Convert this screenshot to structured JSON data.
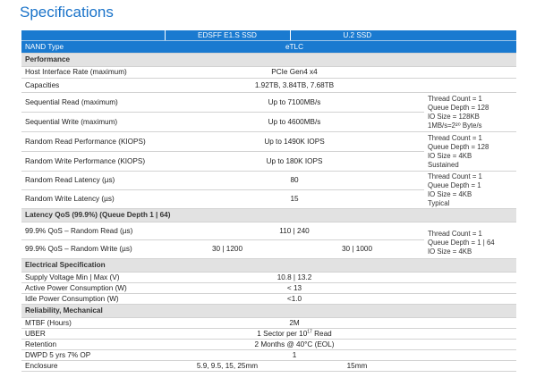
{
  "title": "Specifications",
  "header": {
    "col1": "EDSFF E1.S SSD",
    "col2": "U.2 SSD"
  },
  "nand": {
    "label": "NAND Type",
    "value": "eTLC"
  },
  "sections": {
    "performance": "Performance",
    "latency_qos": "Latency QoS (99.9%) (Queue Depth 1 | 64)",
    "electrical": "Electrical Specification",
    "reliability": "Reliability, Mechanical"
  },
  "rows": {
    "host_interface": {
      "label": "Host Interface Rate (maximum)",
      "value": "PCIe Gen4 x4"
    },
    "capacities": {
      "label": "Capacities",
      "value": "1.92TB, 3.84TB, 7.68TB"
    },
    "seq_read": {
      "label": "Sequential Read (maximum)",
      "value": "Up to 7100MB/s"
    },
    "seq_write": {
      "label": "Sequential Write (maximum)",
      "value": "Up to 4600MB/s"
    },
    "rand_read": {
      "label": "Random Read Performance (KIOPS)",
      "value": "Up to 1490K IOPS"
    },
    "rand_write": {
      "label": "Random Write Performance (KIOPS)",
      "value": "Up to 180K IOPS"
    },
    "rand_read_lat": {
      "label": "Random Read Latency (µs)",
      "value": "80"
    },
    "rand_write_lat": {
      "label": "Random Write Latency (µs)",
      "value": "15"
    },
    "qos_read": {
      "label": "99.9% QoS – Random Read (µs)",
      "value": "110 | 240"
    },
    "qos_write": {
      "label": "99.9% QoS – Random Write (µs)",
      "value_col1": "30 | 1200",
      "value_col2": "30 | 1000"
    },
    "voltage": {
      "label": "Supply Voltage Min | Max (V)",
      "value": "10.8 | 13.2"
    },
    "active_power": {
      "label": "Active Power Consumption (W)",
      "value": "< 13"
    },
    "idle_power": {
      "label": "Idle Power Consumption (W)",
      "value": "<1.0"
    },
    "mtbf": {
      "label": "MTBF (Hours)",
      "value": "2M"
    },
    "uber": {
      "label": "UBER",
      "value_prefix": "1 Sector per 10",
      "value_exp": "17",
      "value_suffix": " Read"
    },
    "retention": {
      "label": "Retention",
      "value": "2 Months @ 40°C (EOL)"
    },
    "dwpd": {
      "label": "DWPD 5 yrs 7% OP",
      "value": "1"
    },
    "enclosure": {
      "label": "Enclosure",
      "value_col1": "5.9, 9.5, 15, 25mm",
      "value_col2": "15mm"
    }
  },
  "notes": {
    "seq": [
      "Thread Count = 1",
      "Queue Depth = 128",
      "IO Size = 128KB",
      "1MB/s=2²⁰ Byte/s"
    ],
    "rand": [
      "Thread Count = 1",
      "Queue Depth = 128",
      "IO Size = 4KB",
      "Sustained"
    ],
    "lat": [
      "Thread Count = 1",
      "Queue Depth = 1",
      "IO Size = 4KB",
      "Typical"
    ],
    "qos": [
      "Thread Count = 1",
      "Queue Depth = 1 | 64",
      "IO Size = 4KB"
    ]
  }
}
